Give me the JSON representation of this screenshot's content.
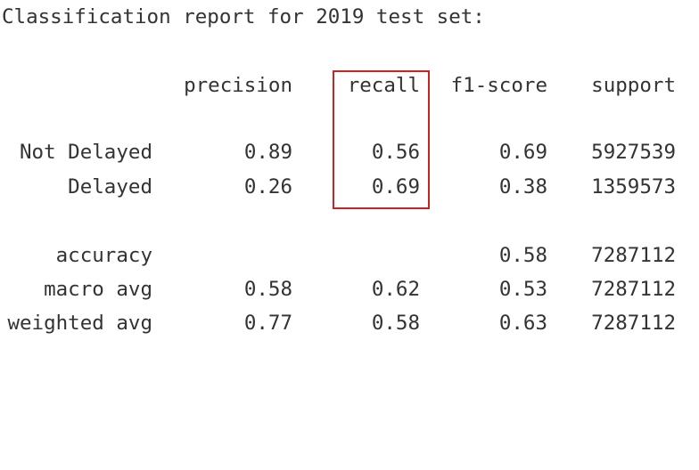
{
  "title": "Classification report for 2019 test set:",
  "header": {
    "precision": "precision",
    "recall": "recall",
    "f1": "f1-score",
    "support": "support"
  },
  "rows": [
    {
      "label": "Not Delayed",
      "precision": "0.89",
      "recall": "0.56",
      "f1": "0.69",
      "support": "5927539"
    },
    {
      "label": "Delayed",
      "precision": "0.26",
      "recall": "0.69",
      "f1": "0.38",
      "support": "1359573"
    },
    {
      "label": "accuracy",
      "precision": "",
      "recall": "",
      "f1": "0.58",
      "support": "7287112"
    },
    {
      "label": "macro avg",
      "precision": "0.58",
      "recall": "0.62",
      "f1": "0.53",
      "support": "7287112"
    },
    {
      "label": "weighted avg",
      "precision": "0.77",
      "recall": "0.58",
      "f1": "0.63",
      "support": "7287112"
    }
  ],
  "colors": {
    "text": "#333333",
    "highlight": "#cc2222"
  }
}
